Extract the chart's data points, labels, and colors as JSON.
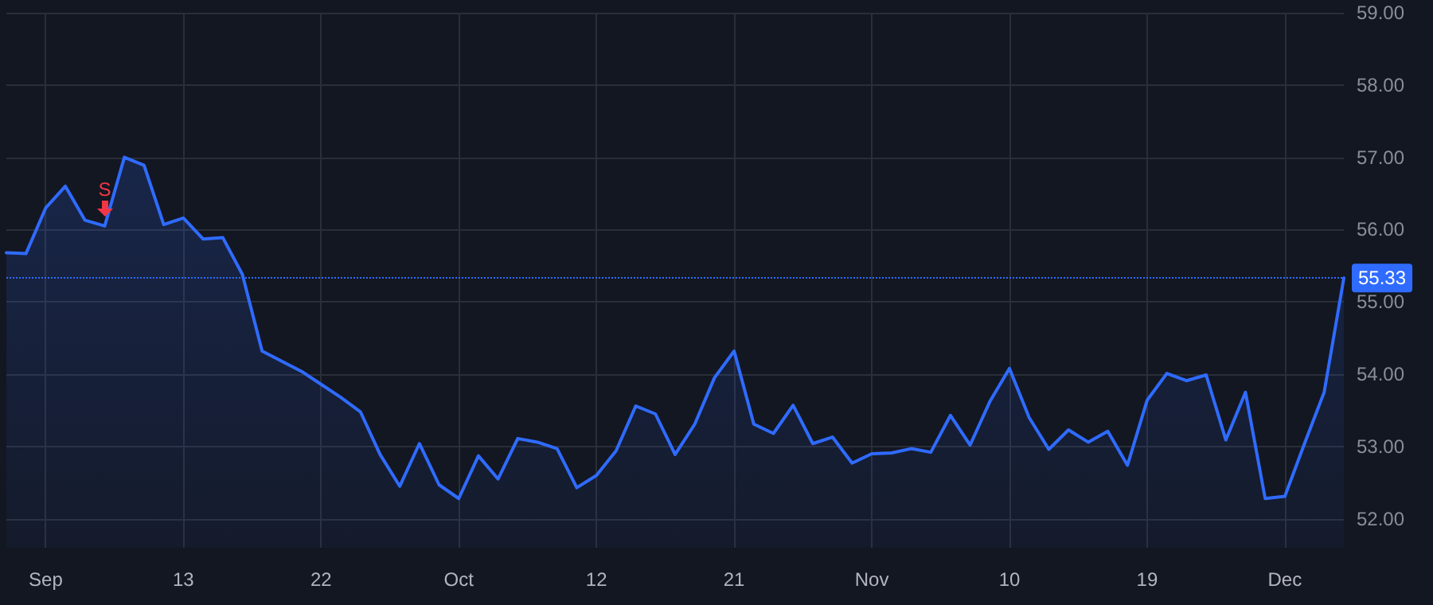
{
  "chart_data": {
    "type": "area",
    "categories": [
      null,
      null,
      "Sep",
      null,
      null,
      null,
      null,
      null,
      null,
      "13",
      null,
      null,
      null,
      null,
      null,
      null,
      "22",
      null,
      null,
      null,
      null,
      null,
      null,
      "Oct",
      null,
      null,
      null,
      null,
      null,
      null,
      "12",
      null,
      null,
      null,
      null,
      null,
      null,
      "21",
      null,
      null,
      null,
      null,
      null,
      null,
      "Nov",
      null,
      null,
      null,
      null,
      null,
      null,
      "10",
      null,
      null,
      null,
      null,
      null,
      null,
      "19",
      null,
      null,
      null,
      null,
      null,
      null,
      "Dec",
      null,
      null,
      null
    ],
    "series": [
      {
        "color": "#2f6bff",
        "values": [
          55.68,
          55.67,
          56.3,
          56.6,
          56.13,
          56.05,
          57.0,
          56.89,
          56.07,
          56.16,
          55.87,
          55.89,
          55.38,
          54.32,
          54.18,
          54.04,
          53.86,
          53.68,
          53.48,
          52.89,
          52.45,
          53.04,
          52.47,
          52.28,
          52.87,
          52.55,
          53.11,
          53.06,
          52.97,
          52.43,
          52.6,
          52.94,
          53.56,
          53.45,
          52.89,
          53.31,
          53.95,
          54.32,
          53.31,
          53.18,
          53.57,
          53.04,
          53.13,
          52.77,
          52.9,
          52.91,
          52.97,
          52.92,
          53.43,
          53.02,
          53.62,
          54.08,
          53.4,
          52.96,
          53.23,
          53.06,
          53.21,
          52.74,
          53.64,
          54.01,
          53.91,
          53.99,
          53.09,
          53.75,
          52.28,
          52.31,
          53.04,
          53.75,
          55.33
        ]
      }
    ],
    "ylim": [
      51.6,
      59
    ],
    "yticks": [
      {
        "value": 52,
        "label": "52.00"
      },
      {
        "value": 53,
        "label": "53.00"
      },
      {
        "value": 54,
        "label": "54.00"
      },
      {
        "value": 55,
        "label": "55.00"
      },
      {
        "value": 56,
        "label": "56.00"
      },
      {
        "value": 57,
        "label": "57.00"
      },
      {
        "value": 58,
        "label": "58.00"
      },
      {
        "value": 59,
        "label": "59.00"
      }
    ],
    "ref_lines": [
      {
        "axis": "y",
        "value": 55.33,
        "label": "55.33",
        "color": "#2f6bff",
        "line_style": "dotted"
      }
    ],
    "annotations": [
      {
        "text": "S",
        "y": 56.05
      }
    ],
    "grid": true,
    "marker": "none",
    "line_style": "solid"
  }
}
